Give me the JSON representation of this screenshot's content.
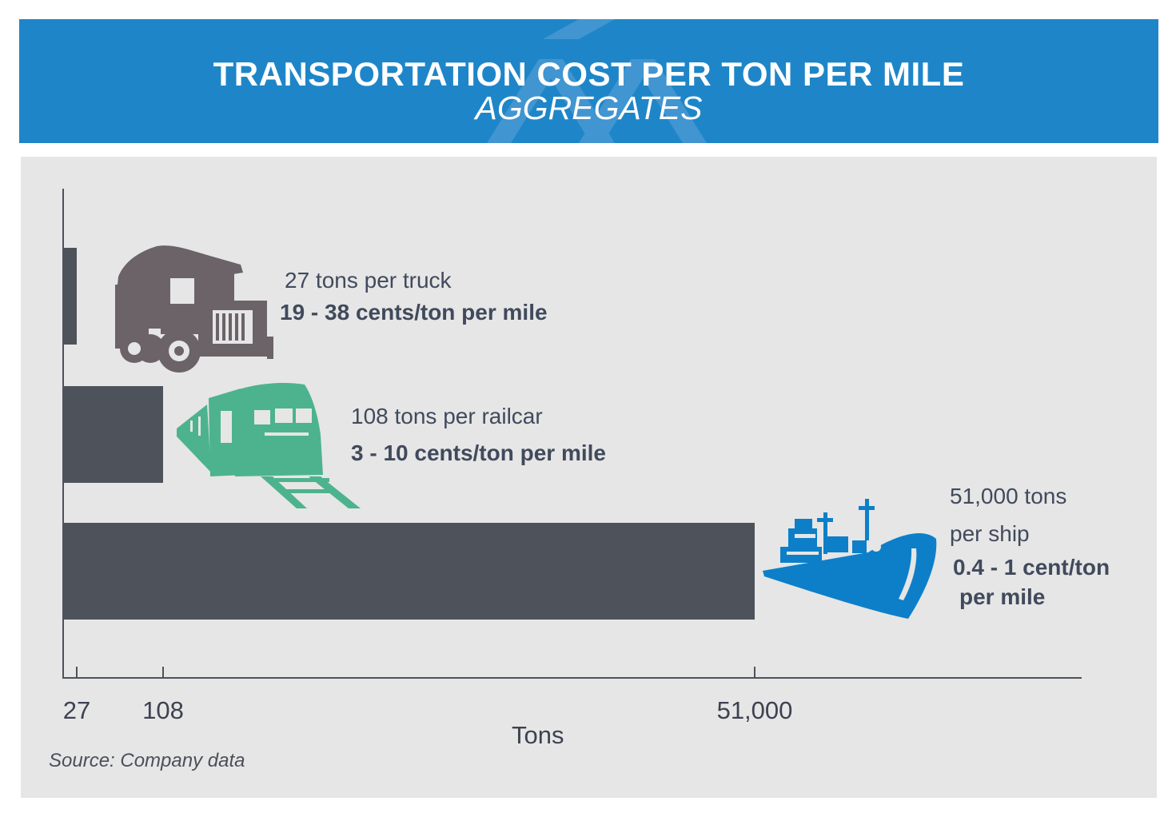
{
  "chart_data": {
    "type": "bar",
    "orientation": "horizontal",
    "title": "TRANSPORTATION COST PER TON PER MILE",
    "subtitle": "AGGREGATES",
    "xlabel": "Tons",
    "ylabel": "",
    "categories": [
      "truck",
      "railcar",
      "ship"
    ],
    "values": [
      27,
      108,
      51000
    ],
    "x_ticks": [
      "27",
      "108",
      "51,000"
    ],
    "grid": false,
    "legend": "none",
    "annotations": [
      {
        "capacity": "27 tons per truck",
        "cost": "19 - 38  cents/ton per mile",
        "icon": "dump-truck-icon",
        "icon_color": "#6b6367"
      },
      {
        "capacity": "108 tons per railcar",
        "cost": "3 - 10 cents/ton per mile",
        "icon": "train-icon",
        "icon_color": "#4db38f"
      },
      {
        "capacity_line1": "51,000 tons",
        "capacity_line2": "per ship",
        "cost_line1": "0.4 - 1  cent/ton",
        "cost_line2": "per mile",
        "icon": "ship-icon",
        "icon_color": "#0d7fc9"
      }
    ],
    "source": "Source: Company data"
  },
  "colors": {
    "header_bg": "#1e86c8",
    "panel_bg": "#e6e6e6",
    "bar": "#4d525b",
    "axis": "#4d525b",
    "text": "#414a5c"
  }
}
